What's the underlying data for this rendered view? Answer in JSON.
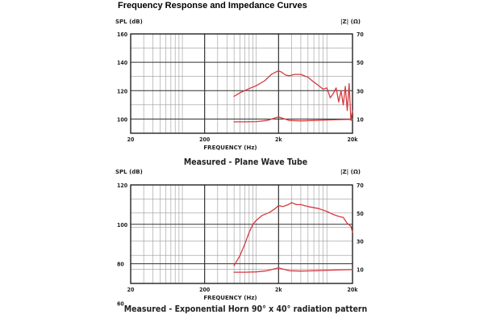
{
  "page": {
    "title": "Frequency Response and Impedance Curves"
  },
  "colors": {
    "curve": "#d63a3f",
    "frame": "#111111",
    "major_grid": "#333333",
    "minor_grid": "#9a9a9a"
  },
  "chart_data": [
    {
      "type": "line",
      "title": "Measured - Plane Wave Tube",
      "xlabel": "FREQUENCY (Hz)",
      "ylabel": "SPL (dB)",
      "y2label": "|Z| (Ω)",
      "xscale": "log",
      "xlim": [
        20,
        20000
      ],
      "ylim": [
        90,
        160
      ],
      "y2lim": [
        0,
        70
      ],
      "x_ticks": [
        {
          "value": 20,
          "label": "20"
        },
        {
          "value": 200,
          "label": "200"
        },
        {
          "value": 2000,
          "label": "2k"
        },
        {
          "value": 20000,
          "label": "20k"
        }
      ],
      "y_ticks": [
        {
          "value": 160,
          "label": "160"
        },
        {
          "value": 140,
          "label": "140"
        },
        {
          "value": 120,
          "label": "120"
        },
        {
          "value": 100,
          "label": "100"
        }
      ],
      "y2_ticks": [
        {
          "value": 70,
          "label": "70"
        },
        {
          "value": 50,
          "label": "50"
        },
        {
          "value": 30,
          "label": "30"
        },
        {
          "value": 10,
          "label": "10"
        }
      ],
      "grid": true,
      "series": [
        {
          "name": "SPL",
          "axis": "left",
          "x": [
            500,
            600,
            800,
            1000,
            1300,
            1600,
            1900,
            2000,
            2200,
            2500,
            2800,
            3300,
            4000,
            5000,
            6000,
            7000,
            8000,
            9000,
            10000,
            11000,
            12000,
            13000,
            14000,
            15000,
            16000,
            17000,
            18000,
            19000,
            20000
          ],
          "y": [
            116,
            118.5,
            121.5,
            123.5,
            127,
            131.5,
            133.5,
            134,
            133,
            131,
            130.5,
            131.5,
            131.5,
            129.5,
            126,
            123.5,
            121,
            122,
            115,
            118,
            122,
            112,
            120,
            110,
            123,
            106,
            125,
            99,
            106
          ]
        },
        {
          "name": "Impedance",
          "axis": "right",
          "x": [
            500,
            700,
            1000,
            1400,
            1800,
            2000,
            2300,
            2800,
            4000,
            6000,
            10000,
            15000,
            20000
          ],
          "y": [
            8,
            8,
            8.2,
            9,
            10.8,
            11.5,
            10.5,
            9,
            8.7,
            9,
            9.4,
            9.7,
            9.8
          ]
        }
      ]
    },
    {
      "type": "line",
      "title": "Measured - Exponential Horn 90° x 40° radiation pattern",
      "xlabel": "FREQUENCY (Hz)",
      "ylabel": "SPL (dB)",
      "y2label": "|Z| (Ω)",
      "xscale": "log",
      "xlim": [
        20,
        20000
      ],
      "ylim": [
        70,
        120
      ],
      "y2lim": [
        0,
        70
      ],
      "x_ticks": [
        {
          "value": 20,
          "label": "20"
        },
        {
          "value": 200,
          "label": "200"
        },
        {
          "value": 2000,
          "label": "2k"
        },
        {
          "value": 20000,
          "label": "20k"
        }
      ],
      "y_ticks": [
        {
          "value": 120,
          "label": "120"
        },
        {
          "value": 100,
          "label": "100"
        },
        {
          "value": 80,
          "label": "80"
        },
        {
          "value": 60,
          "label": "60"
        }
      ],
      "y2_ticks": [
        {
          "value": 70,
          "label": "70"
        },
        {
          "value": 50,
          "label": "50"
        },
        {
          "value": 30,
          "label": "30"
        },
        {
          "value": 10,
          "label": "10"
        }
      ],
      "grid": true,
      "series": [
        {
          "name": "SPL",
          "axis": "left",
          "x": [
            500,
            600,
            700,
            800,
            900,
            1000,
            1200,
            1500,
            1800,
            2000,
            2300,
            2700,
            3000,
            3500,
            4000,
            5000,
            7000,
            9000,
            11000,
            13000,
            15000,
            17000,
            19000,
            20000
          ],
          "y": [
            79,
            84,
            90,
            96,
            100,
            102,
            104.5,
            106,
            108,
            109.5,
            109,
            110,
            111,
            110,
            110,
            109,
            108,
            106.5,
            105,
            104,
            103.5,
            100.5,
            99,
            96
          ]
        },
        {
          "name": "Impedance",
          "axis": "right",
          "x": [
            500,
            700,
            1000,
            1400,
            1800,
            2000,
            2300,
            2800,
            4000,
            6000,
            10000,
            15000,
            20000
          ],
          "y": [
            8,
            8,
            8.2,
            9,
            10.5,
            11,
            10.2,
            9,
            8.8,
            9,
            9.4,
            9.7,
            9.8
          ]
        }
      ]
    }
  ]
}
